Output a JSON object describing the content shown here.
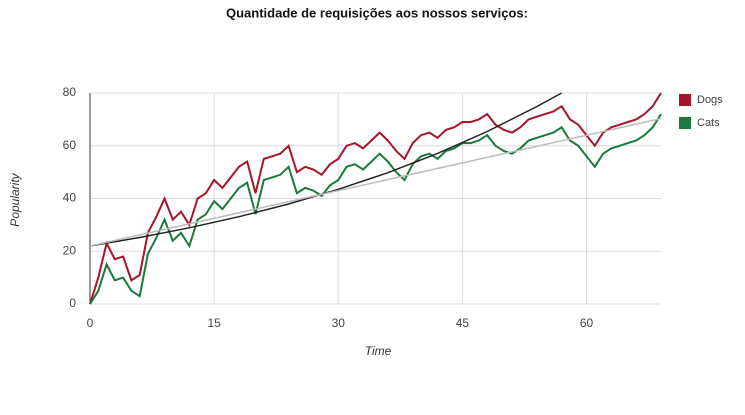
{
  "chart_data": {
    "type": "line",
    "title": "Quantidade de requisições aos nossos serviços:",
    "x_label": "Time",
    "y_label": "Popularity",
    "x": [
      0,
      1,
      2,
      3,
      4,
      5,
      6,
      7,
      8,
      9,
      10,
      11,
      12,
      13,
      14,
      15,
      16,
      17,
      18,
      19,
      20,
      21,
      22,
      23,
      24,
      25,
      26,
      27,
      28,
      29,
      30,
      31,
      32,
      33,
      34,
      35,
      36,
      37,
      38,
      39,
      40,
      41,
      42,
      43,
      44,
      45,
      46,
      47,
      48,
      49,
      50,
      51,
      52,
      53,
      54,
      55,
      56,
      57,
      58,
      59,
      60,
      61,
      62,
      63,
      64,
      65,
      66,
      67,
      68,
      69
    ],
    "series": [
      {
        "name": "Dogs",
        "color": "#a8142a",
        "values": [
          0,
          10,
          23,
          17,
          18,
          9,
          11,
          27,
          33,
          40,
          32,
          35,
          30,
          40,
          42,
          47,
          44,
          48,
          52,
          54,
          42,
          55,
          56,
          57,
          60,
          50,
          52,
          51,
          49,
          53,
          55,
          60,
          61,
          59,
          62,
          65,
          62,
          58,
          55,
          61,
          64,
          65,
          63,
          66,
          67,
          69,
          69,
          70,
          72,
          68,
          66,
          65,
          67,
          70,
          71,
          72,
          73,
          75,
          70,
          68,
          64,
          60,
          65,
          67,
          68,
          69,
          70,
          72,
          75,
          80
        ]
      },
      {
        "name": "Cats",
        "color": "#1a7a3a",
        "values": [
          0,
          5,
          15,
          9,
          10,
          5,
          3,
          19,
          25,
          32,
          24,
          27,
          22,
          32,
          34,
          39,
          36,
          40,
          44,
          46,
          34,
          47,
          48,
          49,
          52,
          42,
          44,
          43,
          41,
          45,
          47,
          52,
          53,
          51,
          54,
          57,
          54,
          50,
          47,
          53,
          56,
          57,
          55,
          58,
          59,
          61,
          61,
          62,
          64,
          60,
          58,
          57,
          59,
          62,
          63,
          64,
          65,
          67,
          62,
          60,
          56,
          52,
          57,
          59,
          60,
          61,
          62,
          64,
          67,
          72
        ]
      }
    ],
    "trendlines": [
      {
        "color": "#222222",
        "x": [
          0,
          6,
          12,
          18,
          24,
          30,
          36,
          42,
          48,
          54,
          57
        ],
        "values": [
          22,
          25.2,
          28.9,
          33.1,
          37.9,
          43.5,
          49.8,
          57.1,
          65.4,
          74.9,
          80
        ]
      },
      {
        "color": "#bbbbbb",
        "x": [
          0,
          69
        ],
        "values": [
          22,
          70.3
        ]
      }
    ],
    "xlim": [
      0,
      69
    ],
    "xticks": [
      0,
      15,
      30,
      45,
      60
    ],
    "ylim": [
      0,
      80
    ],
    "yticks": [
      0,
      20,
      40,
      60,
      80
    ],
    "grid": true,
    "legend": "right"
  }
}
